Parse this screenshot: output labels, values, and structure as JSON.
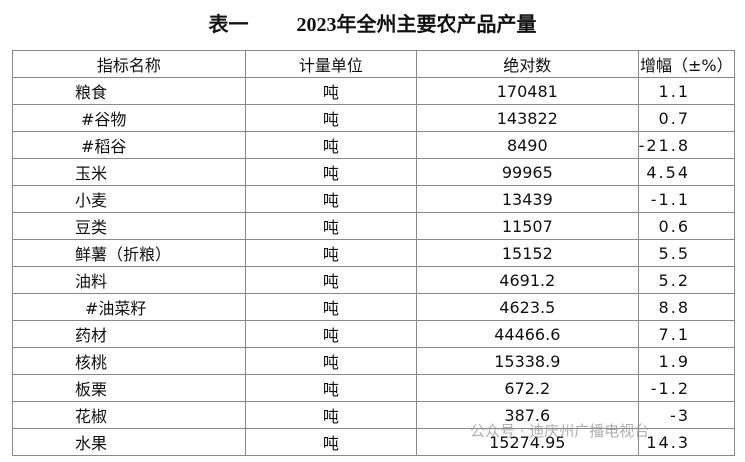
{
  "header": {
    "label": "表一",
    "title": "2023年全州主要农产品产量"
  },
  "table": {
    "columns": [
      "指标名称",
      "计量单位",
      "绝对数",
      "增幅（±%）"
    ],
    "rows": [
      [
        "粮食",
        "吨",
        "170481",
        "1.1"
      ],
      [
        "#谷物",
        "吨",
        "143822",
        "0.7"
      ],
      [
        "#稻谷",
        "吨",
        "8490",
        "-21.8"
      ],
      [
        "玉米",
        "吨",
        "99965",
        "4.54"
      ],
      [
        "小麦",
        "吨",
        "13439",
        "-1.1"
      ],
      [
        "豆类",
        "吨",
        "11507",
        "0.6"
      ],
      [
        "鲜薯（折粮）",
        "吨",
        "15152",
        "5.5"
      ],
      [
        "油料",
        "吨",
        "4691.2",
        "5.2"
      ],
      [
        "#油菜籽",
        "吨",
        "4623.5",
        "8.8"
      ],
      [
        "药材",
        "吨",
        "44466.6",
        "7.1"
      ],
      [
        "核桃",
        "吨",
        "15338.9",
        "1.9"
      ],
      [
        "板栗",
        "吨",
        "672.2",
        "-1.2"
      ],
      [
        "花椒",
        "吨",
        "387.6",
        "-3"
      ],
      [
        "水果",
        "吨",
        "15274.95",
        "14.3"
      ]
    ]
  },
  "watermark": "公众号 · 迪庆州广播电视台"
}
